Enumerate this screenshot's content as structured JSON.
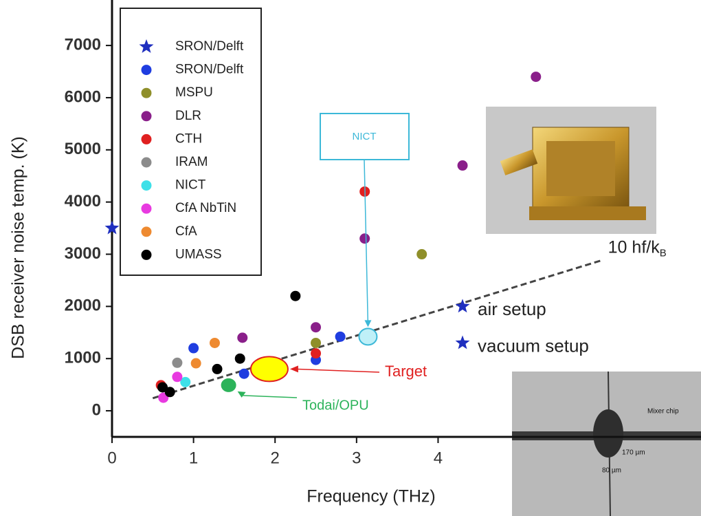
{
  "chart_data": {
    "type": "scatter",
    "x_label": "Frequency (THz)",
    "y_label": "DSB receiver noise temp. (K)",
    "xlim": [
      0,
      7.2
    ],
    "ylim": [
      -500,
      7700
    ],
    "xticks": [
      0,
      1,
      2,
      3,
      4
    ],
    "yticks": [
      0,
      1000,
      2000,
      3000,
      4000,
      5000,
      6000,
      7000
    ],
    "series": [
      {
        "name": "SRON/Delft",
        "marker": "star",
        "color": "#1f2fbf",
        "x": [
          0,
          4.3,
          4.3
        ],
        "values": [
          3500,
          2000,
          1300
        ]
      },
      {
        "name": "SRON/Delft",
        "marker": "circle",
        "color": "#1f3de0",
        "x": [
          1.0,
          1.62,
          2.5,
          2.8
        ],
        "values": [
          1200,
          710,
          975,
          1420
        ]
      },
      {
        "name": "MSPU",
        "marker": "circle",
        "color": "#8f8f2a",
        "x": [
          3.8,
          2.5
        ],
        "values": [
          3000,
          1300
        ]
      },
      {
        "name": "DLR",
        "marker": "circle",
        "color": "#8a1f8a",
        "x": [
          5.2,
          4.3,
          3.1,
          2.5,
          1.6
        ],
        "values": [
          6400,
          4700,
          3300,
          1600,
          1400
        ]
      },
      {
        "name": "CTH",
        "marker": "circle",
        "color": "#e02020",
        "x": [
          3.1,
          2.5,
          0.6
        ],
        "values": [
          4200,
          1100,
          490
        ]
      },
      {
        "name": "IRAM",
        "marker": "circle",
        "color": "#8c8c8c",
        "x": [
          0.8
        ],
        "values": [
          920
        ]
      },
      {
        "name": "NICT",
        "marker": "circle",
        "color": "#3de0e8",
        "x": [
          0.9
        ],
        "values": [
          550
        ]
      },
      {
        "name": "CfA NbTiN",
        "marker": "circle",
        "color": "#e83ae0",
        "x": [
          0.8,
          0.63
        ],
        "values": [
          650,
          250
        ]
      },
      {
        "name": "CfA",
        "marker": "circle",
        "color": "#ee8a30",
        "x": [
          1.26,
          1.03
        ],
        "values": [
          1300,
          910
        ]
      },
      {
        "name": "UMASS",
        "marker": "circle",
        "color": "#000000",
        "x": [
          2.25,
          1.57,
          1.29,
          0.62,
          0.71
        ],
        "values": [
          2200,
          1000,
          800,
          450,
          360
        ]
      }
    ],
    "highlights": [
      {
        "name": "NICT",
        "color": "#bff0f8",
        "stroke": "#3cb8d8",
        "x": 3.14,
        "y": 1420
      },
      {
        "name": "Target",
        "color": "#ffff00",
        "stroke": "#e02020",
        "x": 1.93,
        "y": 800
      },
      {
        "name": "Todai/OPU",
        "color": "#2cb35a",
        "stroke": "#2cb35a",
        "x": 1.43,
        "y": 490
      }
    ],
    "reference_line": {
      "label": "10 hf/k",
      "label_sub": "B",
      "slope": 480,
      "x": [
        0.5,
        6.0
      ]
    },
    "annotations": [
      "air setup",
      "vacuum setup"
    ],
    "inset_labels": [
      "Mixer chip",
      "170 µm",
      "80 µm"
    ]
  }
}
